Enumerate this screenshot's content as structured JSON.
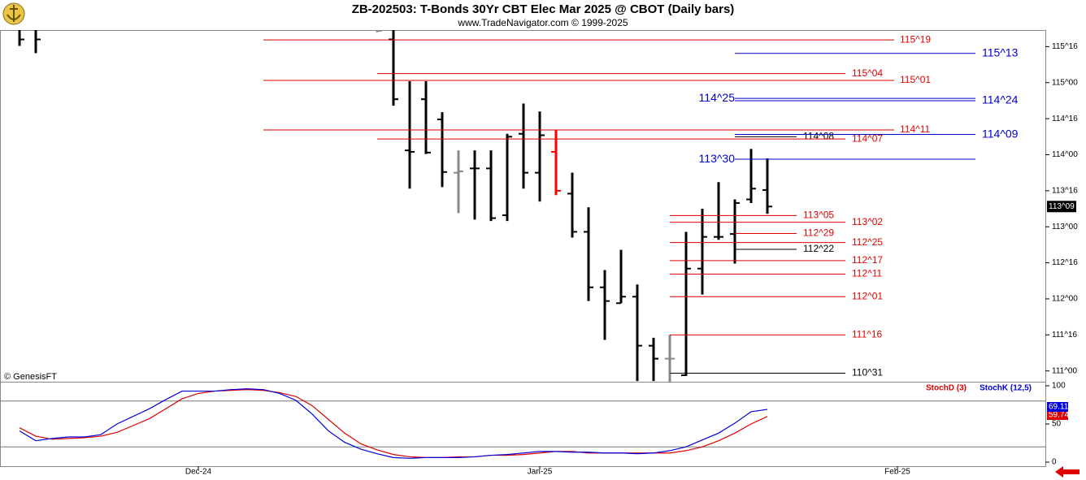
{
  "header": {
    "title": "ZB-202503:  T-Bonds 30Yr CBT Elec Mar 2025 @ CBOT  (Daily bars)",
    "subtitle": "www.TradeNavigator.com © 1999-2025",
    "credit": "© GenesisFT"
  },
  "chart_data": [
    {
      "type": "ohlc",
      "x": [
        0,
        1,
        22,
        23,
        24,
        25,
        26,
        27,
        28,
        29,
        30,
        31,
        32,
        33,
        34,
        35,
        36,
        37,
        38,
        39,
        40,
        41,
        42,
        43,
        44,
        45,
        46
      ],
      "open": [
        115.8,
        115.8,
        115.76,
        115.6,
        114.06,
        114.77,
        114.49,
        113.75,
        113.81,
        113.81,
        113.16,
        114.29,
        113.75,
        114.04,
        113.46,
        112.93,
        112.16,
        111.94,
        112.03,
        111.35,
        111.17,
        110.94,
        112.42,
        112.86,
        112.9,
        113.38,
        113.51
      ],
      "high": [
        115.9,
        115.9,
        115.8,
        115.9,
        115.02,
        115.02,
        114.59,
        114.06,
        114.06,
        114.06,
        114.29,
        114.71,
        114.6,
        114.34,
        113.75,
        113.27,
        112.4,
        112.68,
        112.2,
        111.46,
        111.5,
        112.93,
        113.25,
        113.62,
        113.38,
        114.08,
        113.95
      ],
      "low": [
        115.51,
        115.41,
        115.7,
        114.68,
        113.53,
        114.01,
        113.55,
        113.19,
        113.1,
        113.08,
        113.08,
        113.53,
        113.35,
        113.44,
        112.85,
        111.97,
        111.43,
        111.94,
        110.86,
        110.86,
        110.8,
        110.93,
        112.06,
        112.82,
        112.49,
        113.33,
        113.18
      ],
      "close": [
        115.6,
        115.6,
        115.72,
        114.77,
        114.04,
        114.03,
        113.76,
        113.77,
        113.81,
        113.12,
        114.25,
        113.75,
        114.27,
        113.5,
        112.93,
        112.16,
        111.97,
        112.03,
        111.35,
        111.17,
        111.17,
        112.42,
        112.86,
        112.86,
        113.33,
        113.53,
        113.28125
      ],
      "colors": [
        "#000",
        "#000",
        "#888",
        "#000",
        "#000",
        "#000",
        "#000",
        "#888",
        "#000",
        "#000",
        "#000",
        "#000",
        "#000",
        "#ff0000",
        "#000",
        "#000",
        "#000",
        "#000",
        "#000",
        "#000",
        "#888",
        "#000",
        "#000",
        "#000",
        "#000",
        "#000",
        "#000"
      ],
      "last": {
        "value": 113.28125,
        "label": "113^09"
      },
      "xlim": [
        -1.2,
        63.1
      ],
      "ylim": [
        110.85,
        115.73
      ],
      "yticks": [
        {
          "value": 111,
          "label": "111^00"
        },
        {
          "value": 111.5,
          "label": "111^16"
        },
        {
          "value": 112,
          "label": "112^00"
        },
        {
          "value": 112.5,
          "label": "112^16"
        },
        {
          "value": 113,
          "label": "113^00"
        },
        {
          "value": 113.5,
          "label": "113^16"
        },
        {
          "value": 114,
          "label": "114^00"
        },
        {
          "value": 114.5,
          "label": "114^16"
        },
        {
          "value": 115,
          "label": "115^00"
        },
        {
          "value": 115.5,
          "label": "115^16"
        }
      ],
      "levels": [
        {
          "value": 115.59375,
          "label": "115^19",
          "color": "#e00000"
        },
        {
          "value": 115.40625,
          "label": "115^13",
          "color": "#0000cc"
        },
        {
          "value": 115.125,
          "label": "115^04",
          "color": "#e00000"
        },
        {
          "value": 115.03125,
          "label": "115^01",
          "color": "#e00000"
        },
        {
          "value": 114.78125,
          "label": "114^25",
          "color": "#0000cc"
        },
        {
          "value": 114.75,
          "label": "114^24",
          "color": "#0000cc"
        },
        {
          "value": 114.34375,
          "label": "114^11",
          "color": "#e00000"
        },
        {
          "value": 114.28125,
          "label": "114^09",
          "color": "#0000cc"
        },
        {
          "value": 114.25,
          "label": "114^08",
          "color": "#000000"
        },
        {
          "value": 114.21875,
          "label": "114^07",
          "color": "#e00000"
        },
        {
          "value": 113.9375,
          "label": "113^30",
          "color": "#0000cc"
        },
        {
          "value": 113.15625,
          "label": "113^05",
          "color": "#e00000"
        },
        {
          "value": 113.0625,
          "label": "113^02",
          "color": "#e00000"
        },
        {
          "value": 112.90625,
          "label": "112^29",
          "color": "#e00000"
        },
        {
          "value": 112.78125,
          "label": "112^25",
          "color": "#e00000"
        },
        {
          "value": 112.6875,
          "label": "112^22",
          "color": "#000000"
        },
        {
          "value": 112.53125,
          "label": "112^17",
          "color": "#e00000"
        },
        {
          "value": 112.34375,
          "label": "112^11",
          "color": "#e00000"
        },
        {
          "value": 112.03125,
          "label": "112^01",
          "color": "#e00000"
        },
        {
          "value": 111.5,
          "label": "111^16",
          "color": "#e00000"
        },
        {
          "value": 110.96875,
          "label": "110^31",
          "color": "#000000"
        }
      ]
    },
    {
      "type": "line",
      "x": [
        0,
        1,
        2,
        3,
        4,
        5,
        6,
        7,
        8,
        9,
        10,
        11,
        12,
        13,
        14,
        15,
        16,
        17,
        18,
        19,
        20,
        21,
        22,
        23,
        24,
        25,
        26,
        27,
        28,
        29,
        30,
        31,
        32,
        33,
        34,
        35,
        36,
        37,
        38,
        39,
        40,
        41,
        42,
        43,
        44,
        45,
        46
      ],
      "series": [
        {
          "name": "StochD (3)",
          "color": "#e00000",
          "values": [
            45,
            34,
            30,
            31,
            32,
            34,
            39,
            48,
            57,
            70,
            83,
            90,
            93,
            94,
            95,
            94,
            91,
            86,
            74,
            56,
            38,
            24,
            16,
            10,
            7,
            6,
            6,
            7,
            7,
            9,
            9,
            10,
            12,
            14,
            14,
            12,
            12,
            12,
            12,
            12,
            12,
            15,
            20,
            28,
            38,
            50,
            59.74
          ]
        },
        {
          "name": "StochK (12,5)",
          "color": "#0000dd",
          "values": [
            41,
            28,
            31,
            33,
            33,
            36,
            50,
            60,
            70,
            82,
            93,
            93,
            93,
            95,
            96,
            95,
            90,
            81,
            63,
            41,
            26,
            17,
            11,
            6,
            5,
            6,
            6,
            6,
            7,
            9,
            10,
            12,
            14,
            14,
            13,
            13,
            12,
            12,
            11,
            12,
            15,
            20,
            29,
            38,
            51,
            66,
            69.11
          ]
        }
      ],
      "xlim": [
        -1.2,
        63.1
      ],
      "xticks": [
        {
          "value": 11,
          "label": "Dec-24"
        },
        {
          "value": 32,
          "label": "Jan-25"
        },
        {
          "value": 54,
          "label": "Feb-25"
        }
      ],
      "ylim": [
        0,
        100
      ],
      "yticks": [
        0,
        50,
        100
      ],
      "hlines": [
        80,
        20
      ]
    }
  ]
}
